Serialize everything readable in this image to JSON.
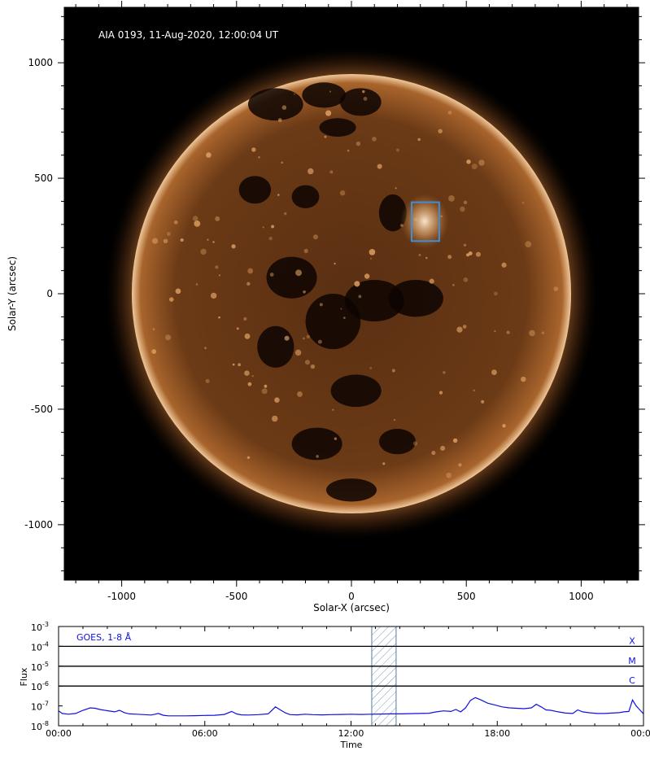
{
  "image_panel": {
    "annotation": "AIA 0193, 11-Aug-2020, 12:00:04 UT",
    "xlabel": "Solar-X (arcsec)",
    "ylabel": "Solar-Y (arcsec)",
    "xlim": [
      -1250,
      1250
    ],
    "ylim": [
      -1240,
      1240
    ],
    "x_ticks": [
      -1000,
      -500,
      0,
      500,
      1000
    ],
    "y_ticks": [
      1000,
      500,
      0,
      -500,
      -1000
    ],
    "minor_tick_step": 100,
    "solar_radius_arcsec": 944,
    "roi_box": {
      "x0": 262,
      "x1": 382,
      "y0": 228,
      "y1": 396
    },
    "colors": {
      "background": "#000000",
      "disk": "#6b3a16",
      "limb": "#f0c89a",
      "roi": "#3f8fd8"
    }
  },
  "chart_data": {
    "type": "line",
    "title": "",
    "legend": "GOES, 1-8 Å",
    "xlabel": "Time",
    "ylabel": "Flux",
    "x_unit": "hours",
    "xlim": [
      0,
      24
    ],
    "x_ticks": [
      0,
      6,
      12,
      18,
      24
    ],
    "x_tick_labels": [
      "00:00",
      "06:00",
      "12:00",
      "18:00",
      "00:00"
    ],
    "y_scale": "log",
    "ylim": [
      -8,
      -3
    ],
    "y_tick_exponents": [
      -3,
      -4,
      -5,
      -6,
      -7,
      -8
    ],
    "y_tick_base": "10",
    "flare_levels": [
      {
        "label": "X",
        "exponent": -4
      },
      {
        "label": "M",
        "exponent": -5
      },
      {
        "label": "C",
        "exponent": -6
      }
    ],
    "highlight_window": [
      12.85,
      13.85
    ],
    "series": [
      {
        "color": "#1010e0",
        "x": [
          0.0,
          0.15,
          0.4,
          0.7,
          1.0,
          1.3,
          1.5,
          1.7,
          2.0,
          2.3,
          2.5,
          2.7,
          2.9,
          3.2,
          3.5,
          3.8,
          4.1,
          4.3,
          4.5,
          4.8,
          5.2,
          5.6,
          6.0,
          6.4,
          6.8,
          7.1,
          7.3,
          7.5,
          7.8,
          8.2,
          8.6,
          8.9,
          9.1,
          9.3,
          9.5,
          9.8,
          10.1,
          10.4,
          10.8,
          11.2,
          11.6,
          12.0,
          12.4,
          12.8,
          13.2,
          13.6,
          14.0,
          14.4,
          14.8,
          15.2,
          15.5,
          15.8,
          16.1,
          16.3,
          16.5,
          16.7,
          16.9,
          17.1,
          17.3,
          17.6,
          17.9,
          18.2,
          18.5,
          18.8,
          19.1,
          19.4,
          19.6,
          19.8,
          20.0,
          20.2,
          20.5,
          20.8,
          21.1,
          21.3,
          21.5,
          21.8,
          22.1,
          22.4,
          22.7,
          23.0,
          23.2,
          23.4,
          23.55,
          23.7,
          23.85,
          24.0
        ],
        "y": [
          -7.25,
          -7.38,
          -7.42,
          -7.38,
          -7.22,
          -7.1,
          -7.12,
          -7.18,
          -7.24,
          -7.3,
          -7.22,
          -7.34,
          -7.4,
          -7.42,
          -7.44,
          -7.46,
          -7.38,
          -7.47,
          -7.5,
          -7.5,
          -7.5,
          -7.49,
          -7.48,
          -7.47,
          -7.43,
          -7.28,
          -7.4,
          -7.45,
          -7.46,
          -7.44,
          -7.4,
          -7.05,
          -7.2,
          -7.35,
          -7.44,
          -7.45,
          -7.42,
          -7.44,
          -7.45,
          -7.44,
          -7.43,
          -7.42,
          -7.43,
          -7.42,
          -7.41,
          -7.4,
          -7.4,
          -7.39,
          -7.38,
          -7.37,
          -7.3,
          -7.25,
          -7.28,
          -7.18,
          -7.3,
          -7.1,
          -6.72,
          -6.58,
          -6.68,
          -6.86,
          -6.95,
          -7.05,
          -7.1,
          -7.12,
          -7.14,
          -7.1,
          -6.92,
          -7.05,
          -7.2,
          -7.22,
          -7.3,
          -7.36,
          -7.38,
          -7.2,
          -7.3,
          -7.35,
          -7.38,
          -7.38,
          -7.36,
          -7.34,
          -7.3,
          -7.28,
          -6.7,
          -7.0,
          -7.2,
          -7.4
        ]
      }
    ]
  }
}
